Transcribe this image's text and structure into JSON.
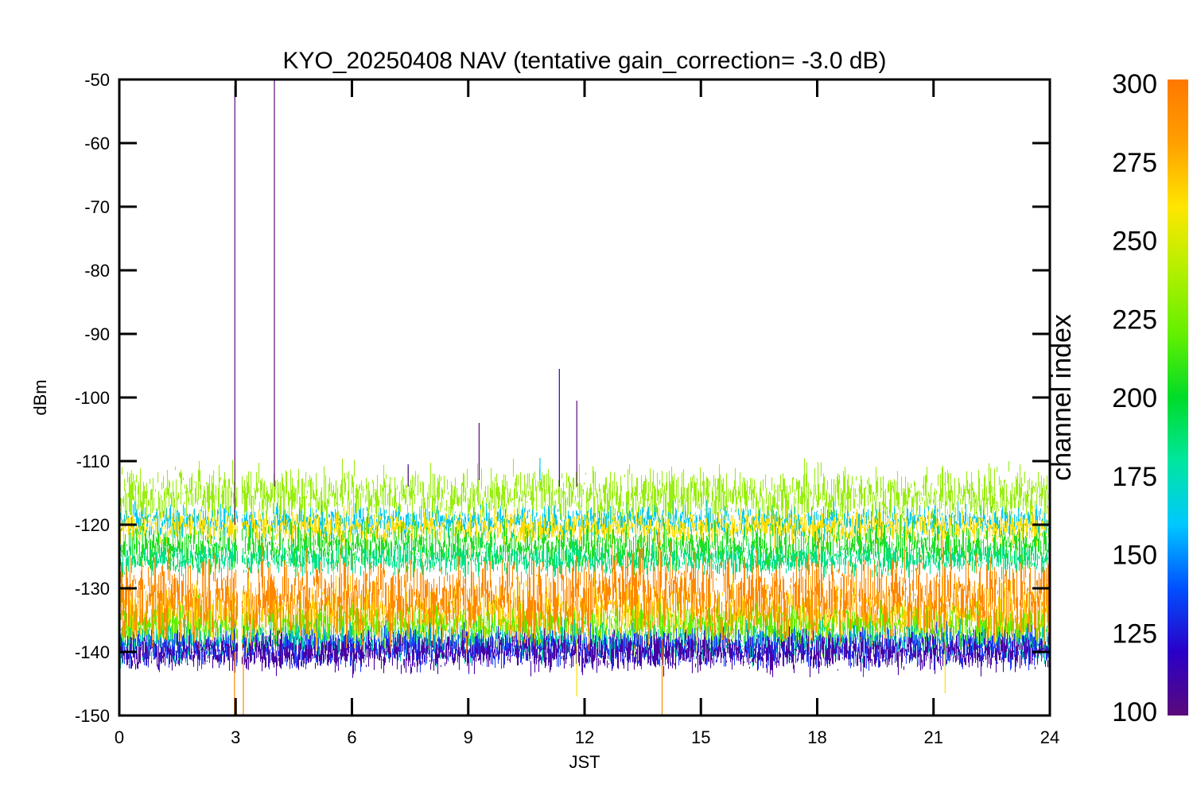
{
  "chart_data": {
    "type": "scatter",
    "title": "KYO_20250408 NAV (tentative gain_correction= -3.0 dB)",
    "xlabel": "JST",
    "ylabel": "dBm",
    "xlim": [
      0,
      24
    ],
    "ylim": [
      -150,
      -50
    ],
    "xticks": [
      "0",
      "3",
      "6",
      "9",
      "12",
      "15",
      "18",
      "21",
      "24"
    ],
    "yticks": [
      "-50",
      "-60",
      "-70",
      "-80",
      "-90",
      "-100",
      "-110",
      "-120",
      "-130",
      "-140",
      "-150"
    ],
    "grid": false,
    "data_gap": {
      "x_start": 3.05,
      "x_end": 3.15
    },
    "colorbar": {
      "label": "channel index",
      "range": [
        100,
        300
      ],
      "ticks": [
        "300",
        "275",
        "250",
        "225",
        "200",
        "175",
        "150",
        "125",
        "100"
      ],
      "colors": [
        "#5a0a7a",
        "#2a00c8",
        "#0050ff",
        "#00c8ff",
        "#00e6a0",
        "#00dc28",
        "#64f000",
        "#b4f000",
        "#ffe600",
        "#ffa000",
        "#ff7800"
      ]
    },
    "series": [
      {
        "channel": 255,
        "color": "#99ee11",
        "center": -115.5,
        "spread": 2.2
      },
      {
        "channel": 180,
        "color": "#00c8f0",
        "center": -119.5,
        "spread": 1.2
      },
      {
        "channel": 272,
        "color": "#ffdd00",
        "center": -120.5,
        "spread": 1.3
      },
      {
        "channel": 225,
        "color": "#22dd22",
        "center": -123.5,
        "spread": 1.8
      },
      {
        "channel": 215,
        "color": "#00e08c",
        "center": -125.5,
        "spread": 1.2
      },
      {
        "channel": 265,
        "color": "#ffd000",
        "center": -134.0,
        "spread": 2.5
      },
      {
        "channel": 240,
        "color": "#66ee00",
        "center": -136.0,
        "spread": 1.8
      },
      {
        "channel": 200,
        "color": "#00ccaa",
        "center": -138.5,
        "spread": 1.5
      },
      {
        "channel": 135,
        "color": "#2040ff",
        "center": -139.5,
        "spread": 1.5
      },
      {
        "channel": 110,
        "color": "#4a00a0",
        "center": -140.0,
        "spread": 1.5
      },
      {
        "channel": 295,
        "color": "#ff8800",
        "center": -131.5,
        "spread": 3.5
      }
    ],
    "spikes": [
      {
        "x": 2.98,
        "y_top": -51,
        "y_bottom": -120,
        "color": "#5a0a7a"
      },
      {
        "x": 4.0,
        "y_top": -50,
        "y_bottom": -114,
        "color": "#5a0a7a"
      },
      {
        "x": 7.45,
        "y_top": -110.5,
        "y_bottom": -114,
        "color": "#4a00a0"
      },
      {
        "x": 9.28,
        "y_top": -104,
        "y_bottom": -113,
        "color": "#5a0a7a"
      },
      {
        "x": 10.85,
        "y_top": -109.5,
        "y_bottom": -113,
        "color": "#00c8f0"
      },
      {
        "x": 11.35,
        "y_top": -95.5,
        "y_bottom": -114,
        "color": "#2a00c8"
      },
      {
        "x": 11.8,
        "y_top": -100.5,
        "y_bottom": -114,
        "color": "#5a0a7a"
      },
      {
        "x": 2.97,
        "y_top": -140,
        "y_bottom": -150,
        "color": "#ff8800"
      },
      {
        "x": 3.2,
        "y_top": -140,
        "y_bottom": -150,
        "color": "#ff8800"
      },
      {
        "x": 14.0,
        "y_top": -138,
        "y_bottom": -150,
        "color": "#ff8800"
      },
      {
        "x": 11.8,
        "y_top": -138,
        "y_bottom": -147,
        "color": "#ffdd00"
      },
      {
        "x": 21.3,
        "y_top": -138,
        "y_bottom": -146.5,
        "color": "#ffdd00"
      },
      {
        "x": 24.0,
        "y_top": -138,
        "y_bottom": -145.5,
        "color": "#22dd22"
      }
    ]
  }
}
